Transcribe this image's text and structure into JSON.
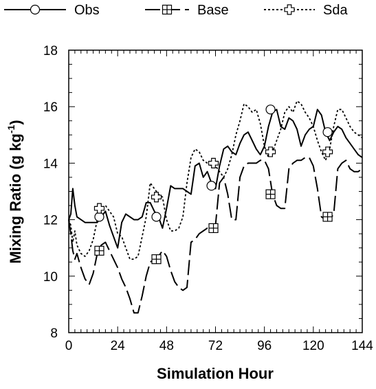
{
  "chart_data": {
    "type": "line",
    "title": "",
    "xlabel": "Simulation Hour",
    "ylabel": "Mixing Ratio (g kg",
    "ylabel_exponent": "-1",
    "ylabel_close": ")",
    "xlim": [
      0,
      144
    ],
    "ylim": [
      8,
      18
    ],
    "xticks": [
      0,
      24,
      48,
      72,
      96,
      120,
      144
    ],
    "xtick_labels": [
      "0",
      "24",
      "48",
      "72",
      "96",
      "120",
      "144"
    ],
    "yticks": [
      8,
      10,
      12,
      14,
      16,
      18
    ],
    "ytick_labels": [
      "8",
      "10",
      "12",
      "14",
      "16",
      "18"
    ],
    "grid": false,
    "legend_position": "top",
    "series": [
      {
        "name": "Obs",
        "style": "solid",
        "marker": "circle",
        "x": [
          0,
          1,
          2,
          3,
          4,
          6,
          8,
          10,
          12,
          14,
          16,
          18,
          20,
          22,
          24,
          26,
          28,
          30,
          32,
          34,
          36,
          38,
          40,
          42,
          44,
          46,
          48,
          50,
          52,
          54,
          56,
          58,
          60,
          62,
          64,
          66,
          68,
          70,
          72,
          74,
          76,
          78,
          80,
          82,
          84,
          86,
          88,
          90,
          92,
          94,
          96,
          98,
          100,
          102,
          104,
          106,
          108,
          110,
          112,
          114,
          116,
          118,
          120,
          122,
          124,
          126,
          128,
          130,
          132,
          134,
          136,
          138,
          140,
          142,
          144
        ],
        "y": [
          12.0,
          12.2,
          13.1,
          12.5,
          12.1,
          12.0,
          11.9,
          11.9,
          11.9,
          11.9,
          12.1,
          12.3,
          11.8,
          11.4,
          11.0,
          11.9,
          12.2,
          12.1,
          12.0,
          12.0,
          12.1,
          12.6,
          12.6,
          12.3,
          12.1,
          11.7,
          12.4,
          13.2,
          13.1,
          13.1,
          13.1,
          13.0,
          12.9,
          13.9,
          14.0,
          13.5,
          13.7,
          13.3,
          13.1,
          13.9,
          14.5,
          14.6,
          14.4,
          14.3,
          14.7,
          15.0,
          15.1,
          14.8,
          14.5,
          14.3,
          14.6,
          15.3,
          15.8,
          15.9,
          15.3,
          15.2,
          15.6,
          15.5,
          15.2,
          14.6,
          15.0,
          15.2,
          15.3,
          15.9,
          15.7,
          15.1,
          14.8,
          15.1,
          15.3,
          15.2,
          14.9,
          14.7,
          14.5,
          14.3,
          14.2
        ],
        "markers_x": [
          15,
          43,
          70,
          99,
          127
        ],
        "markers_y": [
          12.1,
          12.1,
          13.2,
          15.9,
          15.1
        ]
      },
      {
        "name": "Base",
        "style": "long-dash",
        "marker": "boxed-plus",
        "x": [
          0,
          1,
          2,
          3,
          4,
          6,
          8,
          10,
          12,
          14,
          16,
          18,
          20,
          22,
          24,
          26,
          28,
          30,
          32,
          34,
          36,
          38,
          40,
          42,
          44,
          46,
          48,
          50,
          52,
          54,
          56,
          58,
          60,
          62,
          64,
          66,
          68,
          70,
          72,
          74,
          76,
          78,
          80,
          82,
          84,
          86,
          88,
          90,
          92,
          94,
          96,
          98,
          100,
          102,
          104,
          106,
          108,
          110,
          112,
          114,
          116,
          118,
          120,
          122,
          124,
          126,
          128,
          130,
          132,
          134,
          136,
          138,
          140,
          142,
          144
        ],
        "y": [
          12.0,
          11.5,
          10.9,
          10.6,
          10.8,
          10.3,
          9.9,
          9.7,
          10.1,
          10.8,
          11.1,
          11.2,
          10.9,
          10.6,
          10.3,
          9.9,
          9.6,
          9.2,
          8.7,
          8.7,
          9.3,
          10.0,
          10.5,
          10.6,
          10.7,
          10.9,
          10.7,
          10.2,
          9.8,
          9.6,
          9.5,
          9.6,
          11.2,
          11.3,
          11.5,
          11.6,
          11.7,
          11.7,
          11.8,
          13.3,
          13.5,
          12.9,
          12.0,
          12.0,
          13.5,
          13.9,
          14.0,
          14.0,
          14.0,
          14.1,
          14.1,
          13.8,
          12.9,
          12.5,
          12.4,
          12.4,
          13.8,
          14.0,
          14.1,
          14.1,
          14.2,
          14.2,
          13.9,
          13.1,
          12.1,
          12.0,
          12.0,
          12.2,
          13.8,
          14.0,
          14.1,
          13.8,
          13.7,
          13.7,
          13.8
        ],
        "markers_x": [
          15,
          43,
          71,
          99,
          127
        ],
        "markers_y": [
          10.9,
          10.6,
          11.7,
          12.9,
          12.1
        ]
      },
      {
        "name": "Sda",
        "style": "dotted",
        "marker": "open-cross",
        "x": [
          0,
          1,
          2,
          3,
          4,
          6,
          8,
          10,
          12,
          14,
          16,
          18,
          20,
          22,
          24,
          26,
          28,
          30,
          32,
          34,
          36,
          38,
          40,
          42,
          44,
          46,
          48,
          50,
          52,
          54,
          56,
          58,
          60,
          62,
          64,
          66,
          68,
          70,
          72,
          74,
          76,
          78,
          80,
          82,
          84,
          86,
          88,
          90,
          92,
          94,
          96,
          98,
          100,
          102,
          104,
          106,
          108,
          110,
          112,
          114,
          116,
          118,
          120,
          122,
          124,
          126,
          128,
          130,
          132,
          134,
          136,
          138,
          140,
          142,
          144
        ],
        "y": [
          12.0,
          11.8,
          11.2,
          11.6,
          11.1,
          10.8,
          10.7,
          10.9,
          11.3,
          12.0,
          12.4,
          12.5,
          12.3,
          12.1,
          11.5,
          11.4,
          11.0,
          10.6,
          10.6,
          10.7,
          11.4,
          12.1,
          13.3,
          13.1,
          12.9,
          12.8,
          12.0,
          11.6,
          11.6,
          11.7,
          12.1,
          13.3,
          14.2,
          14.5,
          14.4,
          14.1,
          14.0,
          13.9,
          13.9,
          13.7,
          13.5,
          13.8,
          14.3,
          15.0,
          15.5,
          16.1,
          16.0,
          15.8,
          15.9,
          15.4,
          14.6,
          14.2,
          14.4,
          14.8,
          15.2,
          15.8,
          16.0,
          15.8,
          16.2,
          16.1,
          15.8,
          15.6,
          15.3,
          14.8,
          14.4,
          14.1,
          14.5,
          15.3,
          15.9,
          15.9,
          15.6,
          15.3,
          15.1,
          15.0,
          14.9
        ],
        "markers_x": [
          15,
          43,
          71,
          99,
          127
        ],
        "markers_y": [
          12.4,
          12.8,
          14.0,
          14.4,
          14.4
        ]
      }
    ]
  }
}
